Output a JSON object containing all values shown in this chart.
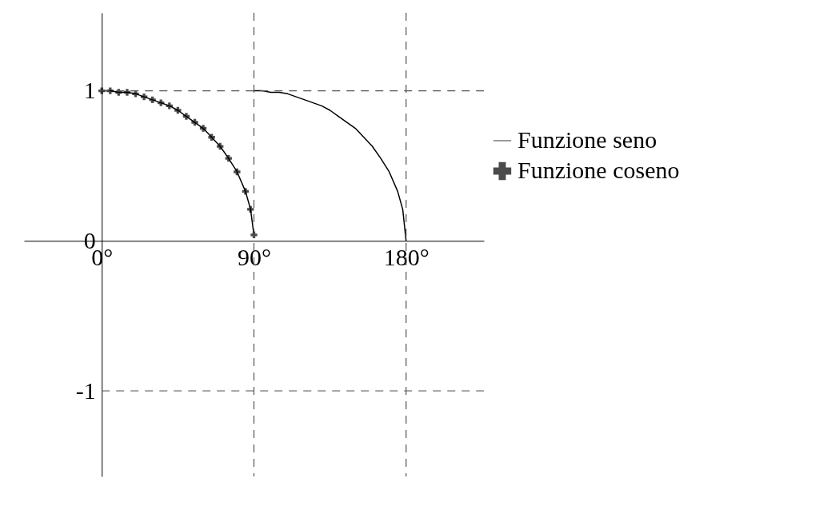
{
  "chart_data": {
    "type": "line",
    "xlim": [
      -46,
      226
    ],
    "ylim": [
      -1.57,
      1.52
    ],
    "xticks": [
      {
        "value": 0,
        "label": "0°"
      },
      {
        "value": 90,
        "label": "90°"
      },
      {
        "value": 180,
        "label": "180°"
      }
    ],
    "yticks": [
      -1,
      0,
      1
    ],
    "grid": false,
    "legend": "right",
    "line_style": "solid",
    "ref_lines": [
      {
        "axis": "x",
        "value": 90,
        "line_style": "dashed",
        "color": "#555555"
      },
      {
        "axis": "x",
        "value": 180,
        "line_style": "dashed",
        "color": "#555555"
      },
      {
        "axis": "y",
        "value": 1,
        "line_style": "dashed",
        "color": "#555555"
      },
      {
        "axis": "y",
        "value": -1,
        "line_style": "dashed",
        "color": "#555555"
      }
    ],
    "series": [
      {
        "name": "Funzione seno",
        "color": "#000000",
        "marker": "none",
        "x": [
          90,
          95,
          100,
          105,
          110,
          115,
          120,
          125,
          130,
          135,
          140,
          145,
          150,
          155,
          160,
          165,
          170,
          175,
          178,
          180
        ],
        "values": [
          1,
          1,
          0.99,
          0.99,
          0.98,
          0.96,
          0.94,
          0.92,
          0.9,
          0.87,
          0.83,
          0.79,
          0.75,
          0.69,
          0.63,
          0.55,
          0.46,
          0.33,
          0.21,
          0
        ]
      },
      {
        "name": "Funzione coseno",
        "color": "#000000",
        "marker": "cross",
        "x": [
          0,
          5,
          10,
          15,
          20,
          25,
          30,
          35,
          40,
          45,
          50,
          55,
          60,
          65,
          70,
          75,
          80,
          85,
          88,
          90
        ],
        "values": [
          1,
          1,
          0.99,
          0.99,
          0.98,
          0.96,
          0.94,
          0.92,
          0.9,
          0.87,
          0.83,
          0.79,
          0.75,
          0.69,
          0.63,
          0.55,
          0.46,
          0.33,
          0.21,
          0.04
        ]
      }
    ]
  }
}
